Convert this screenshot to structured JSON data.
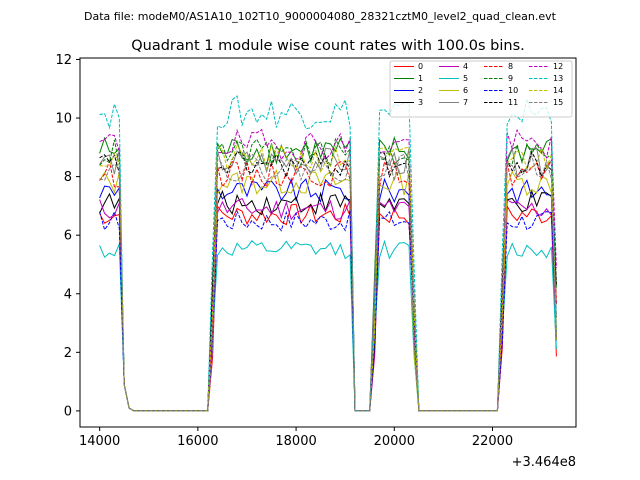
{
  "chart_data": {
    "type": "line",
    "suptitle": "Data file: modeM0/AS1A10_102T10_9000004080_28321cztM0_level2_quad_clean.evt",
    "title": "Quadrant 1 module wise count rates with 100.0s bins.",
    "xlabel": "",
    "ylabel": "",
    "x_offset_label": "+3.464e8",
    "xlim": [
      13600,
      23700
    ],
    "ylim": [
      -0.55,
      12.05
    ],
    "x_ticks": [
      14000,
      16000,
      18000,
      20000,
      22000
    ],
    "x_tick_labels": [
      "14000",
      "16000",
      "18000",
      "20000",
      "22000"
    ],
    "y_ticks": [
      0,
      2,
      4,
      6,
      8,
      10,
      12
    ],
    "y_tick_labels": [
      "0",
      "2",
      "4",
      "6",
      "8",
      "10",
      "12"
    ],
    "grid": false,
    "legend_position": "top-right",
    "segments": [
      {
        "x0": 14000,
        "n": 5
      },
      {
        "x0": 14500,
        "n": 2,
        "low": true
      },
      {
        "x0": 14700,
        "n": 16,
        "zero": true
      },
      {
        "x0": 16300,
        "n": 1,
        "low": true
      },
      {
        "x0": 16400,
        "n": 28
      },
      {
        "x0": 19200,
        "n": 1,
        "zero": true
      },
      {
        "x0": 19300,
        "n": 3,
        "zero": true
      },
      {
        "x0": 19600,
        "n": 1,
        "low": true
      },
      {
        "x0": 19700,
        "n": 7
      },
      {
        "x0": 20400,
        "n": 1,
        "low": true
      },
      {
        "x0": 20500,
        "n": 17,
        "zero": true
      },
      {
        "x0": 22200,
        "n": 1,
        "low": true
      },
      {
        "x0": 22300,
        "n": 10
      },
      {
        "x0": 23300,
        "n": 1,
        "low": true
      }
    ],
    "series": [
      {
        "name": "0",
        "color": "#ff0000",
        "dash": "solid",
        "level": 6.7
      },
      {
        "name": "1",
        "color": "#008000",
        "dash": "solid",
        "level": 8.9
      },
      {
        "name": "2",
        "color": "#0000ff",
        "dash": "solid",
        "level": 7.5
      },
      {
        "name": "3",
        "color": "#000000",
        "dash": "solid",
        "level": 7.1
      },
      {
        "name": "4",
        "color": "#bf00bf",
        "dash": "solid",
        "level": 6.9
      },
      {
        "name": "5",
        "color": "#00bfbf",
        "dash": "solid",
        "level": 5.5
      },
      {
        "name": "6",
        "color": "#bfbf00",
        "dash": "solid",
        "level": 7.8
      },
      {
        "name": "7",
        "color": "#808080",
        "dash": "solid",
        "level": 8.5
      },
      {
        "name": "8",
        "color": "#ff0000",
        "dash": "dashed",
        "level": 8.1
      },
      {
        "name": "9",
        "color": "#008000",
        "dash": "dashed",
        "level": 8.8
      },
      {
        "name": "10",
        "color": "#0000ff",
        "dash": "dashed",
        "level": 6.5
      },
      {
        "name": "11",
        "color": "#000000",
        "dash": "dashed",
        "level": 8.4
      },
      {
        "name": "12",
        "color": "#bf00bf",
        "dash": "dashed",
        "level": 9.1
      },
      {
        "name": "13",
        "color": "#00bfbf",
        "dash": "dashed",
        "level": 10.2
      },
      {
        "name": "14",
        "color": "#bfbf00",
        "dash": "dashed",
        "level": 8.6
      },
      {
        "name": "15",
        "color": "#808080",
        "dash": "dashed",
        "level": 8.3
      }
    ]
  }
}
